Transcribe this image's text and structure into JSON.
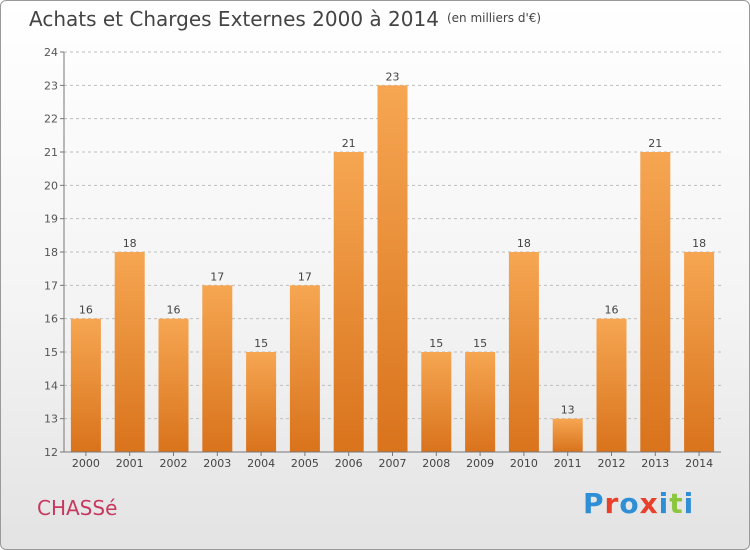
{
  "header": {
    "title": "Achats et Charges Externes 2000 à 2014",
    "subtitle": "(en milliers d'€)"
  },
  "commune": "CHASSé",
  "logo": {
    "text": "Proxiti",
    "letter_colors": [
      "#2e8fd6",
      "#e8402a",
      "#2e8fd6",
      "#e8402a",
      "#2e8fd6",
      "#8cc63e",
      "#2e8fd6"
    ]
  },
  "colors": {
    "bar_top": "#f6a652",
    "bar_bottom": "#d9731c",
    "axis": "#777777",
    "grid": "#bdbdbd",
    "title": "#444444",
    "commune": "#c8385e"
  },
  "chart_data": {
    "type": "bar",
    "title": "Achats et Charges Externes 2000 à 2014",
    "subtitle": "(en milliers d'€)",
    "categories": [
      "2000",
      "2001",
      "2002",
      "2003",
      "2004",
      "2005",
      "2006",
      "2007",
      "2008",
      "2009",
      "2010",
      "2011",
      "2012",
      "2013",
      "2014"
    ],
    "values": [
      16,
      18,
      16,
      17,
      15,
      17,
      21,
      23,
      15,
      15,
      18,
      13,
      16,
      21,
      18
    ],
    "data_labels": [
      "16",
      "18",
      "16",
      "17",
      "15",
      "17",
      "21",
      "23",
      "15",
      "15",
      "18",
      "13",
      "16",
      "21",
      "18"
    ],
    "yticks": [
      12,
      13,
      14,
      15,
      16,
      17,
      18,
      19,
      20,
      21,
      22,
      23,
      24
    ],
    "ylim": [
      12,
      24
    ],
    "grid": true,
    "xlabel": "",
    "ylabel": ""
  }
}
